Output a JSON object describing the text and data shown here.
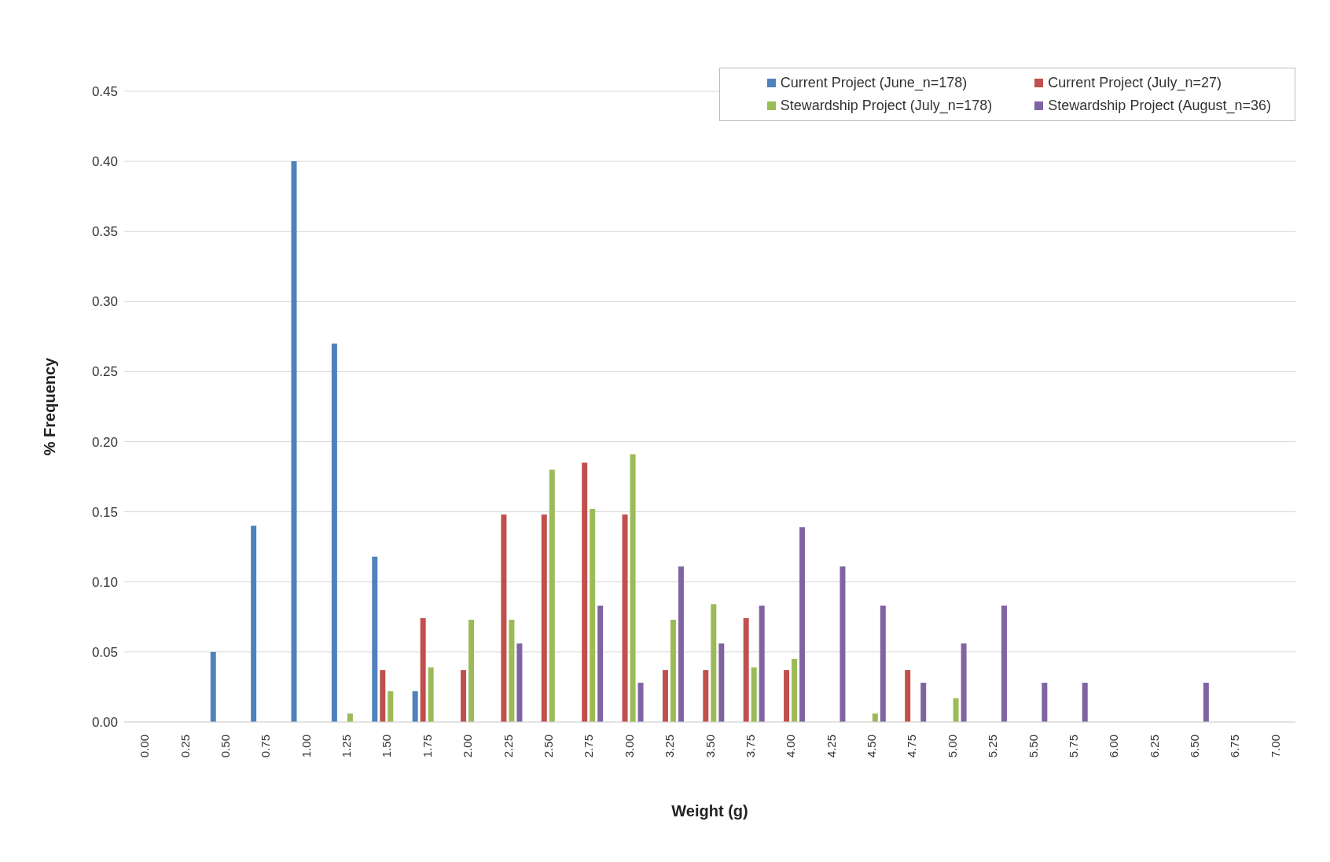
{
  "chart_data": {
    "type": "bar",
    "xlabel": "Weight (g)",
    "ylabel": "% Frequency",
    "categories": [
      "0.00",
      "0.25",
      "0.50",
      "0.75",
      "1.00",
      "1.25",
      "1.50",
      "1.75",
      "2.00",
      "2.25",
      "2.50",
      "2.75",
      "3.00",
      "3.25",
      "3.50",
      "3.75",
      "4.00",
      "4.25",
      "4.50",
      "4.75",
      "5.00",
      "5.25",
      "5.50",
      "5.75",
      "6.00",
      "6.25",
      "6.50",
      "6.75",
      "7.00"
    ],
    "series": [
      {
        "name": "Current Project (June_n=178)",
        "color": "#4f81bd",
        "values": [
          null,
          null,
          0.05,
          0.14,
          0.4,
          0.27,
          0.118,
          0.022,
          null,
          null,
          null,
          null,
          null,
          null,
          null,
          null,
          null,
          null,
          null,
          null,
          null,
          null,
          null,
          null,
          null,
          null,
          null,
          null,
          null
        ]
      },
      {
        "name": "Current Project (July_n=27)",
        "color": "#c0504d",
        "values": [
          null,
          null,
          null,
          null,
          null,
          null,
          0.037,
          0.074,
          0.037,
          0.148,
          0.148,
          0.185,
          0.148,
          0.037,
          0.037,
          0.074,
          0.037,
          null,
          null,
          0.037,
          null,
          null,
          null,
          null,
          null,
          null,
          null,
          null,
          null
        ]
      },
      {
        "name": "Stewardship Project (July_n=178)",
        "color": "#9bbb59",
        "values": [
          null,
          null,
          null,
          null,
          null,
          0.006,
          0.022,
          0.039,
          0.073,
          0.073,
          0.18,
          0.152,
          0.191,
          0.073,
          0.084,
          0.039,
          0.045,
          null,
          0.006,
          null,
          0.017,
          null,
          null,
          null,
          null,
          null,
          null,
          null,
          null
        ]
      },
      {
        "name": "Stewardship Project (August_n=36)",
        "color": "#8064a2",
        "values": [
          null,
          null,
          null,
          null,
          null,
          null,
          null,
          null,
          null,
          0.056,
          null,
          0.083,
          0.028,
          0.111,
          0.056,
          0.083,
          0.139,
          0.111,
          0.083,
          0.028,
          0.056,
          0.083,
          0.028,
          0.028,
          null,
          null,
          0.028,
          null,
          null
        ]
      }
    ],
    "ylim": [
      0,
      0.45
    ],
    "yticks": [
      {
        "value": 0,
        "label": "0.00"
      },
      0.05,
      {
        "value": 0.1,
        "label": "0.10"
      },
      0.15,
      {
        "value": 0.2,
        "label": "0.20"
      },
      0.25,
      {
        "value": 0.3,
        "label": "0.30"
      },
      0.35,
      {
        "value": 0.4,
        "label": "0.40"
      },
      0.45
    ],
    "grid": "y",
    "legend": "top right"
  }
}
